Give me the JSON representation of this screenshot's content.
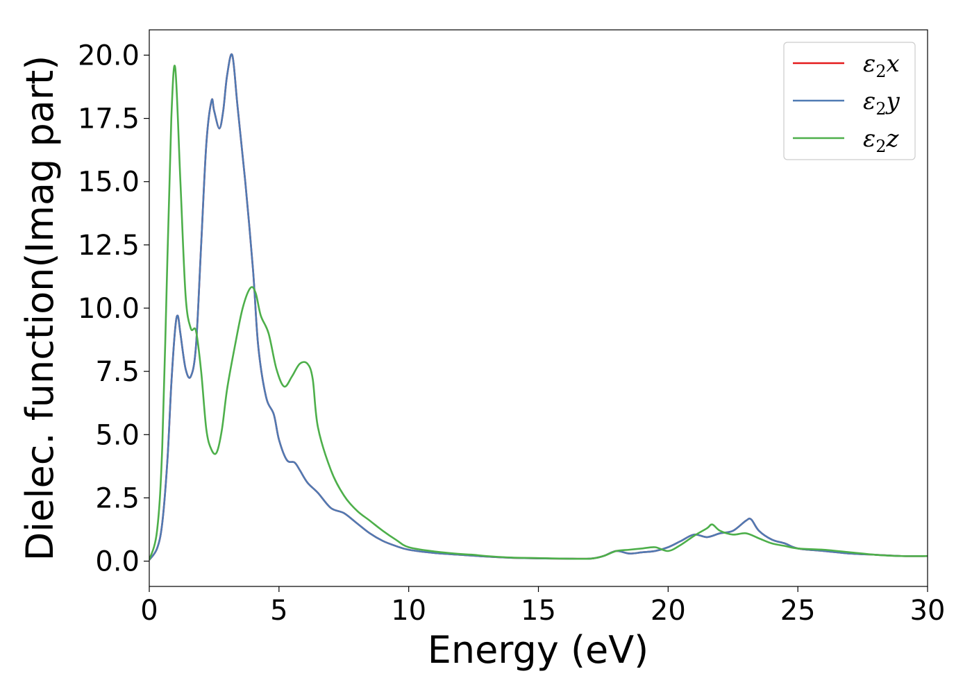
{
  "chart_data": {
    "type": "line",
    "xlabel": "Energy (eV)",
    "ylabel": "Dielec. function(Imag part)",
    "xlim": [
      0,
      30
    ],
    "ylim": [
      -1.0,
      21.0
    ],
    "xticks": [
      0,
      5,
      10,
      15,
      20,
      25,
      30
    ],
    "xtick_labels": [
      "0",
      "5",
      "10",
      "15",
      "20",
      "25",
      "30"
    ],
    "yticks": [
      0.0,
      2.5,
      5.0,
      7.5,
      10.0,
      12.5,
      15.0,
      17.5,
      20.0
    ],
    "ytick_labels": [
      "0.0",
      "2.5",
      "5.0",
      "7.5",
      "10.0",
      "12.5",
      "15.0",
      "17.5",
      "20.0"
    ],
    "grid": false,
    "legend_position": "top-right",
    "series": [
      {
        "name": "ε2x",
        "legend": {
          "base": "ε",
          "sub": "2",
          "var": "x"
        },
        "color": "#e41a1c",
        "x": [
          0,
          0.3,
          0.5,
          0.7,
          0.85,
          1.0,
          1.1,
          1.2,
          1.4,
          1.6,
          1.8,
          2.0,
          2.2,
          2.4,
          2.5,
          2.7,
          2.85,
          3.0,
          3.2,
          3.4,
          3.7,
          4.0,
          4.2,
          4.5,
          4.8,
          5.0,
          5.3,
          5.6,
          5.8,
          6.1,
          6.5,
          7.0,
          7.5,
          8.0,
          8.5,
          9.0,
          9.5,
          10.0,
          11.0,
          12.0,
          13.0,
          14.0,
          15.0,
          16.0,
          17.0,
          17.5,
          18.0,
          18.5,
          19.0,
          19.5,
          20.0,
          20.5,
          21.0,
          21.5,
          22.0,
          22.5,
          23.0,
          23.2,
          23.5,
          24.0,
          24.5,
          25.0,
          26.0,
          27.0,
          28.0,
          29.0,
          30.0
        ],
        "y": [
          0.05,
          0.5,
          1.5,
          4.0,
          7.0,
          9.2,
          9.7,
          9.0,
          7.6,
          7.3,
          8.5,
          12.5,
          16.5,
          18.2,
          17.8,
          17.1,
          17.8,
          19.2,
          20.0,
          18.0,
          15.0,
          11.5,
          8.5,
          6.5,
          5.8,
          4.8,
          4.0,
          3.9,
          3.6,
          3.1,
          2.7,
          2.1,
          1.9,
          1.5,
          1.1,
          0.8,
          0.6,
          0.45,
          0.32,
          0.25,
          0.18,
          0.13,
          0.11,
          0.1,
          0.1,
          0.2,
          0.4,
          0.3,
          0.35,
          0.4,
          0.55,
          0.8,
          1.05,
          0.95,
          1.1,
          1.2,
          1.6,
          1.65,
          1.2,
          0.85,
          0.7,
          0.5,
          0.4,
          0.3,
          0.25,
          0.2,
          0.2
        ]
      },
      {
        "name": "ε2y",
        "legend": {
          "base": "ε",
          "sub": "2",
          "var": "y"
        },
        "color": "#4f7ab3",
        "x": [
          0,
          0.3,
          0.5,
          0.7,
          0.85,
          1.0,
          1.1,
          1.2,
          1.4,
          1.6,
          1.8,
          2.0,
          2.2,
          2.4,
          2.5,
          2.7,
          2.85,
          3.0,
          3.2,
          3.4,
          3.7,
          4.0,
          4.2,
          4.5,
          4.8,
          5.0,
          5.3,
          5.6,
          5.8,
          6.1,
          6.5,
          7.0,
          7.5,
          8.0,
          8.5,
          9.0,
          9.5,
          10.0,
          11.0,
          12.0,
          13.0,
          14.0,
          15.0,
          16.0,
          17.0,
          17.5,
          18.0,
          18.5,
          19.0,
          19.5,
          20.0,
          20.5,
          21.0,
          21.5,
          22.0,
          22.5,
          23.0,
          23.2,
          23.5,
          24.0,
          24.5,
          25.0,
          26.0,
          27.0,
          28.0,
          29.0,
          30.0
        ],
        "y": [
          0.05,
          0.5,
          1.5,
          4.0,
          7.0,
          9.2,
          9.7,
          9.0,
          7.6,
          7.3,
          8.5,
          12.5,
          16.5,
          18.2,
          17.8,
          17.1,
          17.8,
          19.2,
          20.0,
          18.0,
          15.0,
          11.5,
          8.5,
          6.5,
          5.8,
          4.8,
          4.0,
          3.9,
          3.6,
          3.1,
          2.7,
          2.1,
          1.9,
          1.5,
          1.1,
          0.8,
          0.6,
          0.45,
          0.32,
          0.25,
          0.18,
          0.13,
          0.11,
          0.1,
          0.1,
          0.2,
          0.4,
          0.3,
          0.35,
          0.4,
          0.55,
          0.8,
          1.05,
          0.95,
          1.1,
          1.2,
          1.6,
          1.65,
          1.2,
          0.85,
          0.7,
          0.5,
          0.4,
          0.3,
          0.25,
          0.2,
          0.2
        ]
      },
      {
        "name": "ε2z",
        "legend": {
          "base": "ε",
          "sub": "2",
          "var": "z"
        },
        "color": "#4daf4a",
        "x": [
          0,
          0.3,
          0.5,
          0.7,
          0.85,
          1.0,
          1.2,
          1.4,
          1.6,
          1.8,
          2.0,
          2.2,
          2.4,
          2.6,
          2.8,
          3.0,
          3.3,
          3.6,
          3.9,
          4.1,
          4.3,
          4.6,
          4.9,
          5.2,
          5.5,
          5.8,
          6.1,
          6.3,
          6.5,
          7.0,
          7.5,
          8.0,
          8.5,
          9.0,
          9.5,
          10.0,
          11.0,
          12.0,
          12.5,
          13.0,
          14.0,
          15.0,
          16.0,
          17.0,
          17.5,
          18.0,
          18.5,
          19.0,
          19.5,
          20.0,
          20.5,
          21.0,
          21.5,
          21.7,
          22.0,
          22.5,
          23.0,
          23.5,
          24.0,
          24.5,
          25.0,
          26.0,
          27.0,
          28.0,
          29.0,
          30.0
        ],
        "y": [
          0.05,
          1.2,
          4.5,
          12.0,
          17.5,
          19.5,
          15.0,
          10.5,
          9.2,
          9.1,
          7.5,
          5.2,
          4.4,
          4.3,
          5.2,
          6.8,
          8.5,
          10.0,
          10.8,
          10.6,
          9.7,
          9.0,
          7.6,
          6.9,
          7.3,
          7.8,
          7.8,
          7.2,
          5.3,
          3.6,
          2.6,
          2.0,
          1.6,
          1.2,
          0.85,
          0.55,
          0.38,
          0.28,
          0.25,
          0.2,
          0.14,
          0.12,
          0.1,
          0.1,
          0.2,
          0.4,
          0.45,
          0.5,
          0.55,
          0.4,
          0.65,
          1.0,
          1.3,
          1.45,
          1.2,
          1.05,
          1.1,
          0.9,
          0.7,
          0.6,
          0.5,
          0.45,
          0.35,
          0.25,
          0.2,
          0.2
        ]
      }
    ]
  }
}
